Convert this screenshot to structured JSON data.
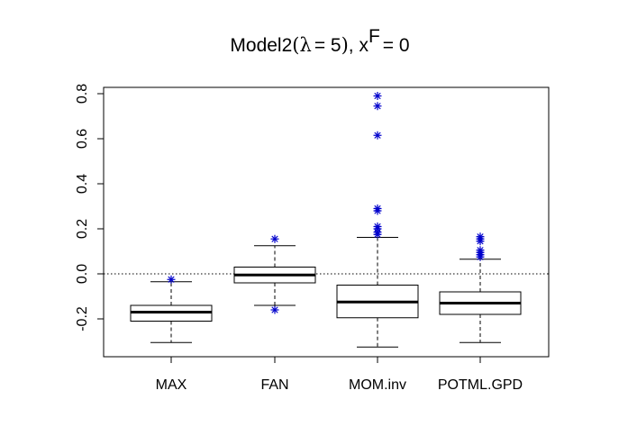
{
  "chart_data": {
    "type": "boxplot",
    "title": {
      "model": "Model2",
      "lambda_symbol": "λ",
      "lambda_equals": "= 5",
      "x_var": "x",
      "x_superscript": "F",
      "x_equals": "= 0"
    },
    "xlabel": "",
    "ylabel": "",
    "ylim": [
      -0.36,
      0.83
    ],
    "yticks": [
      -0.2,
      0.0,
      0.2,
      0.4,
      0.6,
      0.8
    ],
    "ytick_labels": [
      "-0.2",
      "0.0",
      "0.2",
      "0.4",
      "0.6",
      "0.8"
    ],
    "reference_line": {
      "y": 0.0,
      "style": "dotted"
    },
    "categories": [
      "MAX",
      "FAN",
      "MOM.inv",
      "POTML.GPD"
    ],
    "boxes": [
      {
        "name": "MAX",
        "whisker_low": -0.305,
        "q1": -0.21,
        "median": -0.17,
        "q3": -0.14,
        "whisker_high": -0.035,
        "outliers": [
          -0.025
        ]
      },
      {
        "name": "FAN",
        "whisker_low": -0.14,
        "q1": -0.04,
        "median": -0.005,
        "q3": 0.03,
        "whisker_high": 0.125,
        "outliers": [
          0.155,
          -0.16
        ]
      },
      {
        "name": "MOM.inv",
        "whisker_low": -0.325,
        "q1": -0.195,
        "median": -0.125,
        "q3": -0.05,
        "whisker_high": 0.162,
        "outliers": [
          0.79,
          0.745,
          0.615,
          0.29,
          0.28,
          0.21,
          0.2,
          0.185,
          0.175
        ]
      },
      {
        "name": "POTML.GPD",
        "whisker_low": -0.305,
        "q1": -0.18,
        "median": -0.13,
        "q3": -0.08,
        "whisker_high": 0.065,
        "outliers": [
          0.165,
          0.155,
          0.145,
          0.105,
          0.095,
          0.085,
          0.075
        ]
      }
    ],
    "colors": {
      "outlier": "#0000cc",
      "box": "#000000",
      "ref_line": "#000000"
    }
  }
}
